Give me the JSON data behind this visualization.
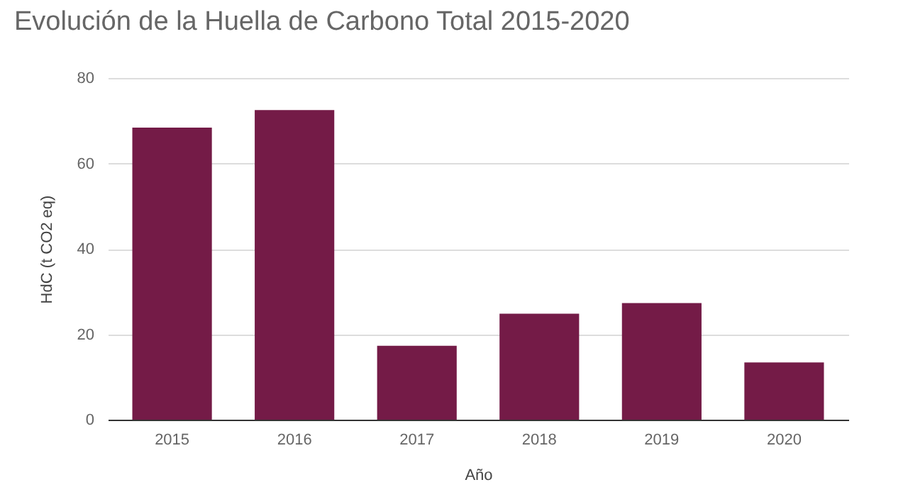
{
  "chart_data": {
    "type": "bar",
    "title": "Evolución de la Huella de Carbono Total 2015-2020",
    "xlabel": "Año",
    "ylabel": "HdC (t CO2 eq)",
    "categories": [
      "2015",
      "2016",
      "2017",
      "2018",
      "2019",
      "2020"
    ],
    "values": [
      68.4,
      72.5,
      17.3,
      24.8,
      27.3,
      13.4
    ],
    "color": "#741b47",
    "ylim": [
      0,
      80
    ],
    "yticks": [
      0,
      20,
      40,
      60,
      80
    ],
    "grid": "y"
  }
}
